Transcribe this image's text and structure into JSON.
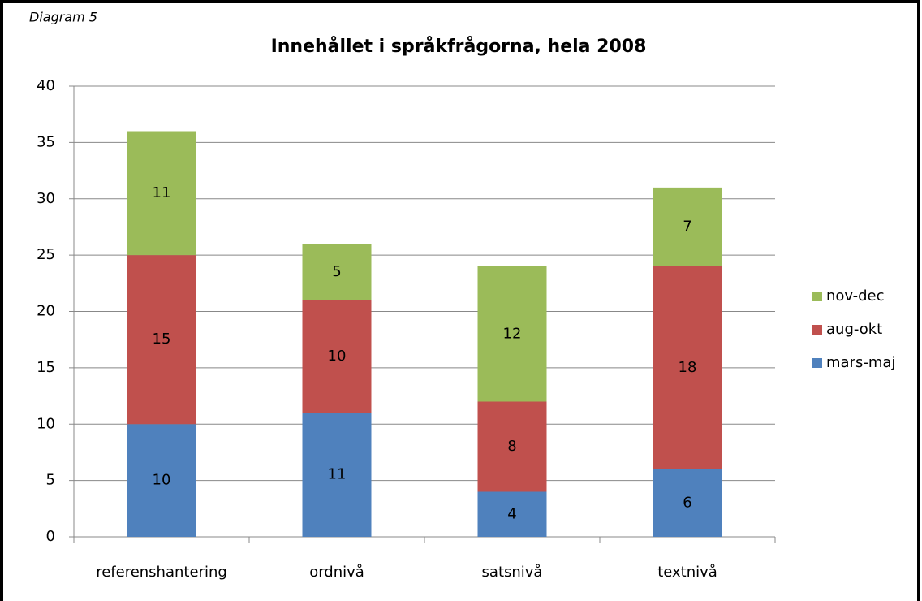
{
  "chart_data": {
    "type": "stacked_bar",
    "title": "Innehållet i språkfrågorna, hela 2008",
    "annotation": "Diagram 5",
    "categories": [
      "referenshantering",
      "ordnivå",
      "satsnivå",
      "textnivå"
    ],
    "series": [
      {
        "name": "mars-maj",
        "color": "#4f81bd",
        "values": [
          10,
          11,
          4,
          6
        ]
      },
      {
        "name": "aug-okt",
        "color": "#c0504d",
        "values": [
          15,
          10,
          8,
          18
        ]
      },
      {
        "name": "nov-dec",
        "color": "#9bbb59",
        "values": [
          11,
          5,
          12,
          7
        ]
      }
    ],
    "ylim": [
      0,
      40
    ],
    "yticks": [
      0,
      5,
      10,
      15,
      20,
      25,
      30,
      35,
      40
    ],
    "grid": true,
    "legend": "right"
  }
}
